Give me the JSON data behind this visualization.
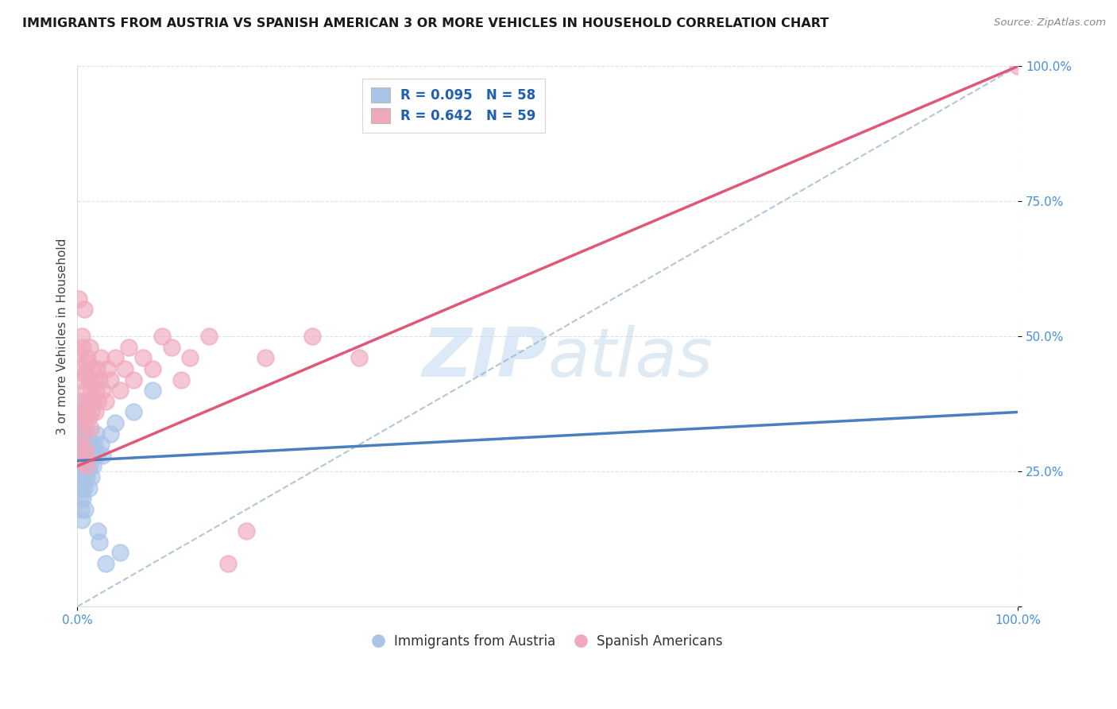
{
  "title": "IMMIGRANTS FROM AUSTRIA VS SPANISH AMERICAN 3 OR MORE VEHICLES IN HOUSEHOLD CORRELATION CHART",
  "source": "Source: ZipAtlas.com",
  "ylabel": "3 or more Vehicles in Household",
  "xlim": [
    0,
    1
  ],
  "ylim": [
    0,
    1
  ],
  "xticks": [
    0.0,
    1.0
  ],
  "yticks": [
    0.0,
    0.25,
    0.5,
    0.75,
    1.0
  ],
  "xtick_labels": [
    "0.0%",
    "100.0%"
  ],
  "ytick_labels": [
    "",
    "25.0%",
    "50.0%",
    "75.0%",
    "100.0%"
  ],
  "legend_blue_label": "R = 0.095   N = 58",
  "legend_pink_label": "R = 0.642   N = 59",
  "legend_blue_series": "Immigrants from Austria",
  "legend_pink_series": "Spanish Americans",
  "blue_color": "#aac4e8",
  "pink_color": "#f0a8bc",
  "blue_line_color": "#4a7fc0",
  "pink_line_color": "#e05878",
  "ref_line_color": "#a0b8d0",
  "watermark_zip_color": "#c0d8f0",
  "watermark_atlas_color": "#b0cce0",
  "grid_color": "#cccccc",
  "blue_scatter_x": [
    0.001,
    0.001,
    0.001,
    0.002,
    0.002,
    0.002,
    0.002,
    0.003,
    0.003,
    0.003,
    0.003,
    0.003,
    0.004,
    0.004,
    0.004,
    0.004,
    0.005,
    0.005,
    0.005,
    0.005,
    0.006,
    0.006,
    0.006,
    0.007,
    0.007,
    0.007,
    0.008,
    0.008,
    0.008,
    0.009,
    0.009,
    0.01,
    0.01,
    0.01,
    0.011,
    0.011,
    0.012,
    0.012,
    0.013,
    0.013,
    0.014,
    0.015,
    0.015,
    0.016,
    0.017,
    0.018,
    0.02,
    0.021,
    0.022,
    0.023,
    0.025,
    0.027,
    0.03,
    0.035,
    0.04,
    0.045,
    0.06,
    0.08
  ],
  "blue_scatter_y": [
    0.3,
    0.25,
    0.35,
    0.28,
    0.32,
    0.38,
    0.22,
    0.26,
    0.3,
    0.34,
    0.2,
    0.36,
    0.24,
    0.28,
    0.32,
    0.18,
    0.26,
    0.3,
    0.22,
    0.16,
    0.24,
    0.28,
    0.2,
    0.26,
    0.22,
    0.32,
    0.24,
    0.28,
    0.18,
    0.26,
    0.3,
    0.24,
    0.28,
    0.32,
    0.26,
    0.3,
    0.28,
    0.22,
    0.26,
    0.3,
    0.28,
    0.24,
    0.3,
    0.28,
    0.26,
    0.3,
    0.32,
    0.28,
    0.14,
    0.12,
    0.3,
    0.28,
    0.08,
    0.32,
    0.34,
    0.1,
    0.36,
    0.4
  ],
  "pink_scatter_x": [
    0.001,
    0.002,
    0.002,
    0.003,
    0.003,
    0.004,
    0.004,
    0.005,
    0.005,
    0.005,
    0.006,
    0.006,
    0.007,
    0.007,
    0.008,
    0.008,
    0.009,
    0.009,
    0.01,
    0.01,
    0.011,
    0.011,
    0.012,
    0.013,
    0.013,
    0.014,
    0.015,
    0.015,
    0.016,
    0.017,
    0.018,
    0.019,
    0.02,
    0.021,
    0.022,
    0.023,
    0.025,
    0.027,
    0.03,
    0.032,
    0.035,
    0.04,
    0.045,
    0.05,
    0.055,
    0.06,
    0.07,
    0.08,
    0.09,
    0.1,
    0.11,
    0.12,
    0.14,
    0.16,
    0.18,
    0.2,
    0.25,
    0.3,
    1.0
  ],
  "pink_scatter_y": [
    0.57,
    0.35,
    0.47,
    0.42,
    0.3,
    0.38,
    0.44,
    0.27,
    0.5,
    0.36,
    0.48,
    0.32,
    0.55,
    0.28,
    0.43,
    0.34,
    0.4,
    0.29,
    0.45,
    0.26,
    0.38,
    0.46,
    0.35,
    0.42,
    0.48,
    0.33,
    0.4,
    0.36,
    0.44,
    0.38,
    0.42,
    0.36,
    0.4,
    0.44,
    0.38,
    0.42,
    0.46,
    0.4,
    0.38,
    0.44,
    0.42,
    0.46,
    0.4,
    0.44,
    0.48,
    0.42,
    0.46,
    0.44,
    0.5,
    0.48,
    0.42,
    0.46,
    0.5,
    0.08,
    0.14,
    0.46,
    0.5,
    0.46,
    1.0
  ],
  "blue_line_x0": 0.0,
  "blue_line_x1": 1.0,
  "blue_line_y0": 0.27,
  "blue_line_y1": 0.36,
  "pink_line_x0": 0.0,
  "pink_line_x1": 1.0,
  "pink_line_y0": 0.26,
  "pink_line_y1": 1.0
}
